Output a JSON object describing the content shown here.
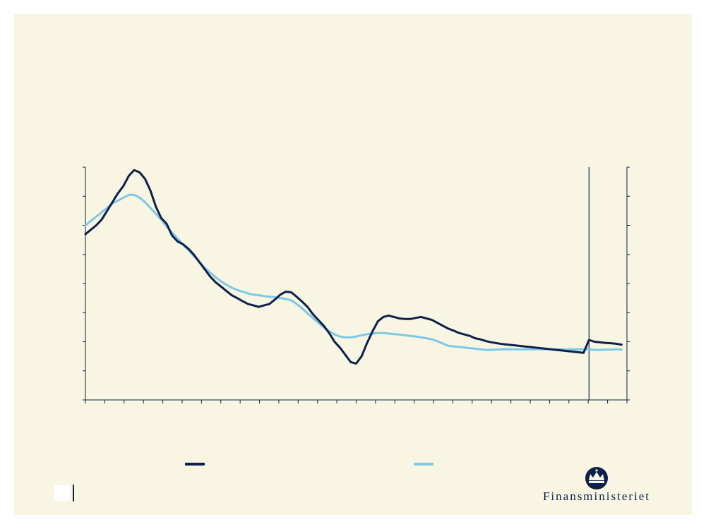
{
  "colors": {
    "background": "#f8f6e2",
    "dark_series": "#0d1f4c",
    "light_series": "#7ec8e6",
    "axis": "#0d1f4c"
  },
  "logo": {
    "text": "Finansministeriet",
    "icon": "crown-icon"
  },
  "chart_data": {
    "type": "line",
    "title": "",
    "xlabel": "",
    "ylabel": "",
    "x_range": [
      0,
      100
    ],
    "ylim": [
      0,
      8
    ],
    "grid": false,
    "vertical_marker_x": 93,
    "legend_position": "bottom",
    "series": [
      {
        "key": "dark",
        "x": [
          0,
          1,
          2,
          3,
          4,
          5,
          6,
          7,
          8,
          9,
          10,
          11,
          12,
          13,
          14,
          15,
          16,
          17,
          18,
          19,
          20,
          21,
          22,
          23,
          24,
          25,
          26,
          27,
          28,
          29,
          30,
          31,
          32,
          33,
          34,
          35,
          36,
          37,
          38,
          39,
          40,
          41,
          42,
          43,
          44,
          45,
          46,
          47,
          48,
          49,
          50,
          51,
          52,
          53,
          54,
          55,
          56,
          57,
          58,
          59,
          60,
          61,
          62,
          63,
          64,
          65,
          66,
          67,
          68,
          69,
          70,
          71,
          72,
          73,
          74,
          75,
          76,
          77,
          78,
          79,
          80,
          81,
          82,
          83,
          84,
          85,
          86,
          87,
          88,
          89,
          90,
          91,
          92,
          93,
          94,
          95,
          96,
          97,
          98,
          99
        ],
        "values": [
          5.7,
          5.85,
          6.0,
          6.2,
          6.5,
          6.8,
          7.1,
          7.35,
          7.7,
          7.9,
          7.82,
          7.6,
          7.2,
          6.65,
          6.25,
          6.05,
          5.65,
          5.45,
          5.35,
          5.2,
          5.0,
          4.75,
          4.5,
          4.25,
          4.05,
          3.9,
          3.75,
          3.6,
          3.5,
          3.4,
          3.3,
          3.25,
          3.2,
          3.25,
          3.3,
          3.45,
          3.62,
          3.72,
          3.7,
          3.55,
          3.38,
          3.2,
          2.95,
          2.75,
          2.55,
          2.3,
          2.0,
          1.8,
          1.55,
          1.3,
          1.25,
          1.5,
          1.95,
          2.35,
          2.7,
          2.85,
          2.9,
          2.85,
          2.8,
          2.78,
          2.78,
          2.82,
          2.85,
          2.8,
          2.75,
          2.65,
          2.55,
          2.45,
          2.38,
          2.3,
          2.25,
          2.2,
          2.12,
          2.08,
          2.02,
          1.98,
          1.95,
          1.92,
          1.9,
          1.88,
          1.86,
          1.84,
          1.82,
          1.8,
          1.78,
          1.76,
          1.74,
          1.72,
          1.7,
          1.68,
          1.66,
          1.64,
          1.62,
          2.06,
          2.0,
          1.98,
          1.96,
          1.95,
          1.93,
          1.9
        ]
      },
      {
        "key": "light",
        "x": [
          0,
          1,
          2,
          3,
          4,
          5,
          6,
          7,
          8,
          9,
          10,
          11,
          12,
          13,
          14,
          15,
          16,
          17,
          18,
          19,
          20,
          21,
          22,
          23,
          24,
          25,
          26,
          27,
          28,
          29,
          30,
          31,
          32,
          33,
          34,
          35,
          36,
          37,
          38,
          39,
          40,
          41,
          42,
          43,
          44,
          45,
          46,
          47,
          48,
          49,
          50,
          51,
          52,
          53,
          54,
          55,
          56,
          57,
          58,
          59,
          60,
          61,
          62,
          63,
          64,
          65,
          66,
          67,
          68,
          69,
          70,
          71,
          72,
          73,
          74,
          75,
          76,
          77,
          78,
          79,
          80,
          81,
          82,
          83,
          84,
          85,
          86,
          87,
          88,
          89,
          90,
          91,
          92,
          93,
          94,
          95,
          96,
          97,
          98,
          99
        ],
        "values": [
          6.0,
          6.15,
          6.3,
          6.45,
          6.6,
          6.75,
          6.85,
          6.95,
          7.05,
          7.05,
          6.95,
          6.8,
          6.6,
          6.4,
          6.2,
          5.95,
          5.75,
          5.55,
          5.35,
          5.15,
          4.95,
          4.75,
          4.55,
          4.38,
          4.22,
          4.08,
          3.96,
          3.86,
          3.78,
          3.72,
          3.66,
          3.62,
          3.6,
          3.57,
          3.55,
          3.53,
          3.5,
          3.47,
          3.42,
          3.3,
          3.15,
          2.98,
          2.82,
          2.65,
          2.5,
          2.36,
          2.25,
          2.18,
          2.15,
          2.15,
          2.18,
          2.22,
          2.26,
          2.28,
          2.3,
          2.3,
          2.28,
          2.26,
          2.25,
          2.22,
          2.2,
          2.18,
          2.15,
          2.12,
          2.08,
          2.02,
          1.94,
          1.86,
          1.84,
          1.82,
          1.8,
          1.78,
          1.76,
          1.74,
          1.72,
          1.72,
          1.73,
          1.74,
          1.74,
          1.74,
          1.74,
          1.74,
          1.74,
          1.74,
          1.74,
          1.74,
          1.74,
          1.74,
          1.74,
          1.74,
          1.74,
          1.74,
          1.74,
          1.74,
          1.72,
          1.72,
          1.73,
          1.73,
          1.74,
          1.73
        ]
      }
    ]
  }
}
